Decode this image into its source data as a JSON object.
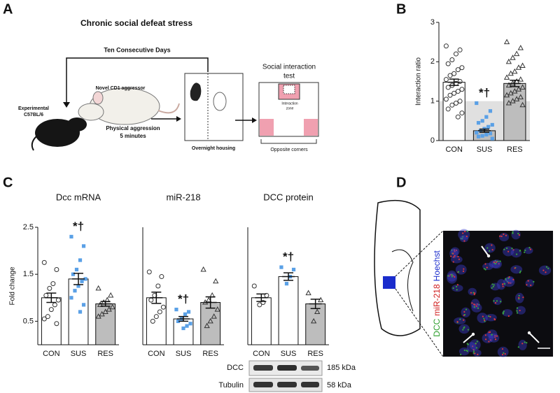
{
  "panel_labels": [
    "A",
    "B",
    "C",
    "D"
  ],
  "diagram": {
    "title": "Chronic social defeat stress",
    "repeat": "Ten Consecutive Days",
    "aggressor": "Novel CD1 aggressor",
    "experimental": [
      "Experimental",
      "C57BL/6"
    ],
    "aggression": [
      "Physical aggression",
      "5 minutes"
    ],
    "housing": "Overnight housing",
    "test": [
      "Social interaction",
      "test"
    ],
    "zone": [
      "Interaction",
      "zone"
    ],
    "corners": "Opposite corners"
  },
  "chart_data": [
    {
      "type": "bar",
      "y_label": "Interaction ratio",
      "categories": [
        "CON",
        "SUS",
        "RES"
      ],
      "values": [
        1.48,
        0.25,
        1.45
      ],
      "errors": [
        0.08,
        0.04,
        0.08
      ],
      "bar_colors": [
        "#ffffff",
        "#bdbdbd",
        "#bdbdbd"
      ],
      "point_colors": [
        "#333333",
        "#5aa0e6",
        "#333333"
      ],
      "markers": [
        "circle",
        "square",
        "triangle"
      ],
      "shaded_band": [
        0,
        1
      ],
      "ylim": [
        0,
        3
      ],
      "yticks": [
        0,
        1,
        2,
        3
      ],
      "points": [
        [
          2.4,
          2.3,
          2.2,
          2.05,
          1.95,
          1.85,
          1.8,
          1.7,
          1.65,
          1.55,
          1.5,
          1.45,
          1.4,
          1.35,
          1.3,
          1.25,
          1.2,
          1.15,
          1.05,
          1.0,
          0.95,
          0.9,
          0.8,
          0.7,
          0.6
        ],
        [
          0.95,
          0.75,
          0.6,
          0.5,
          0.45,
          0.4,
          0.35,
          0.3,
          0.25,
          0.2,
          0.18,
          0.15,
          0.12,
          0.1,
          0.05
        ],
        [
          2.5,
          2.35,
          2.2,
          2.1,
          2.0,
          1.9,
          1.85,
          1.75,
          1.7,
          1.6,
          1.55,
          1.5,
          1.45,
          1.4,
          1.35,
          1.3,
          1.25,
          1.2,
          1.15,
          1.1,
          1.05,
          1.0,
          0.95,
          0.9
        ]
      ],
      "annotations": [
        {
          "text": "*†",
          "category": 1
        }
      ]
    },
    {
      "type": "bar",
      "title": "Dcc mRNA",
      "y_label": "Fold change",
      "categories": [
        "CON",
        "SUS",
        "RES"
      ],
      "values": [
        1.0,
        1.4,
        0.87
      ],
      "errors": [
        0.1,
        0.12,
        0.05
      ],
      "bar_colors": [
        "#ffffff",
        "#ffffff",
        "#bdbdbd"
      ],
      "point_colors": [
        "#333333",
        "#5aa0e6",
        "#333333"
      ],
      "markers": [
        "circle",
        "square",
        "triangle"
      ],
      "ylim": [
        0,
        2.5
      ],
      "yticks": [
        0.5,
        1.5,
        2.5
      ],
      "points": [
        [
          1.75,
          1.6,
          1.3,
          1.2,
          1.05,
          0.95,
          0.85,
          0.75,
          0.6,
          0.55,
          0.45
        ],
        [
          2.3,
          2.1,
          1.8,
          1.6,
          1.5,
          1.4,
          1.35,
          1.25,
          1.15,
          1.0,
          0.85,
          0.7
        ],
        [
          1.2,
          1.05,
          0.95,
          0.9,
          0.85,
          0.8,
          0.75,
          0.7,
          0.65,
          0.6
        ]
      ],
      "annotations": [
        {
          "text": "*†",
          "category": 1
        }
      ]
    },
    {
      "type": "bar",
      "title": "miR-218",
      "categories": [
        "CON",
        "SUS",
        "RES"
      ],
      "values": [
        1.0,
        0.55,
        0.9
      ],
      "errors": [
        0.12,
        0.05,
        0.12
      ],
      "bar_colors": [
        "#ffffff",
        "#ffffff",
        "#bdbdbd"
      ],
      "point_colors": [
        "#333333",
        "#5aa0e6",
        "#333333"
      ],
      "markers": [
        "circle",
        "square",
        "triangle"
      ],
      "ylim": [
        0,
        2.5
      ],
      "points": [
        [
          1.55,
          1.45,
          1.25,
          1.05,
          0.95,
          0.8,
          0.7,
          0.6,
          0.5
        ],
        [
          0.75,
          0.7,
          0.65,
          0.55,
          0.5,
          0.45,
          0.4,
          0.35
        ],
        [
          1.6,
          1.35,
          1.05,
          0.95,
          0.9,
          0.75,
          0.6,
          0.5,
          0.4
        ]
      ],
      "annotations": [
        {
          "text": "*†",
          "category": 1
        }
      ]
    },
    {
      "type": "bar",
      "title": "DCC protein",
      "categories": [
        "CON",
        "SUS",
        "RES"
      ],
      "values": [
        1.0,
        1.45,
        0.87
      ],
      "errors": [
        0.08,
        0.08,
        0.1
      ],
      "bar_colors": [
        "#ffffff",
        "#ffffff",
        "#bdbdbd"
      ],
      "point_colors": [
        "#333333",
        "#5aa0e6",
        "#333333"
      ],
      "markers": [
        "circle",
        "square",
        "triangle"
      ],
      "ylim": [
        0,
        2.5
      ],
      "points": [
        [
          1.25,
          1.05,
          0.9,
          0.85
        ],
        [
          1.65,
          1.6,
          1.45,
          1.3
        ],
        [
          1.1,
          0.95,
          0.7,
          0.5
        ]
      ],
      "annotations": [
        {
          "text": "*†",
          "category": 1
        }
      ]
    }
  ],
  "blot": {
    "rows": [
      {
        "label": "DCC",
        "size": "185 kDa"
      },
      {
        "label": "Tubulin",
        "size": "58 kDa"
      }
    ]
  },
  "micrograph": {
    "channels": [
      "DCC",
      "miR-218",
      "Hoechst"
    ]
  }
}
